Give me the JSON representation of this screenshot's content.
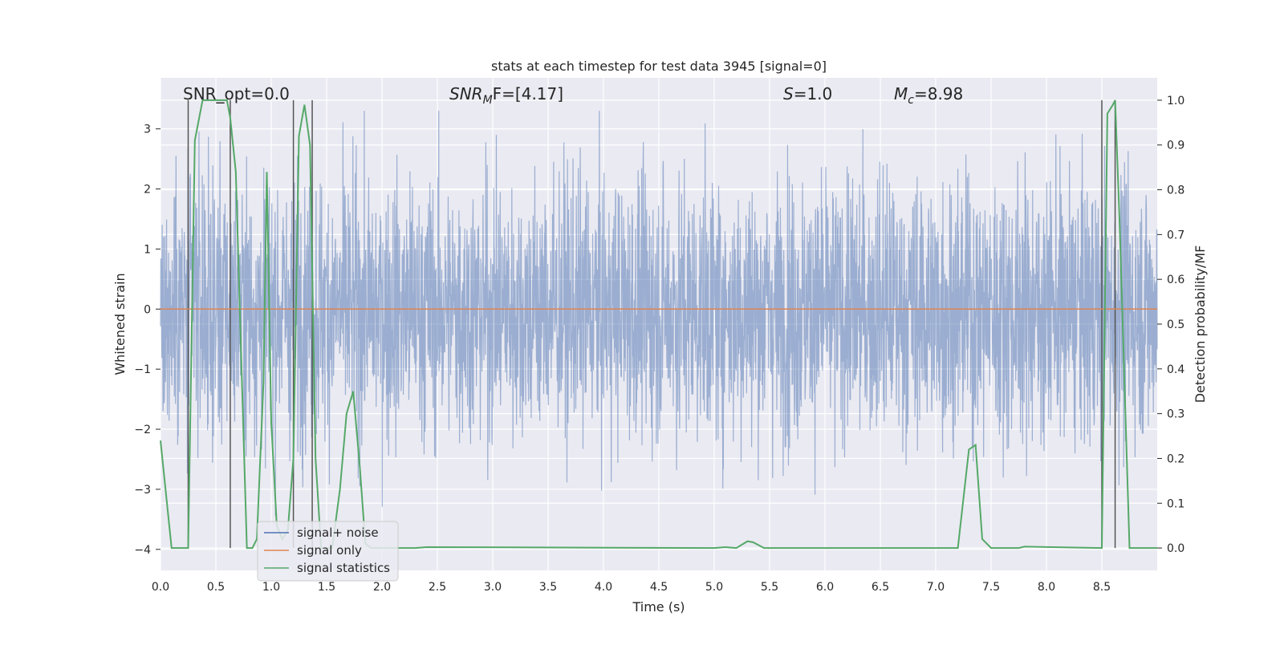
{
  "chart_data": {
    "type": "line",
    "title": "stats at each timestep for test data 3945 [signal=0]",
    "xlabel": "Time (s)",
    "ylabel_left": "Whitened strain",
    "ylabel_right": "Detection probability/MF",
    "xlim": [
      0.0,
      9.0
    ],
    "ylim_left": [
      -4.35,
      3.85
    ],
    "ylim_right": [
      -0.05,
      1.05
    ],
    "xticks": [
      "0.0",
      "0.5",
      "1.0",
      "1.5",
      "2.0",
      "2.5",
      "3.0",
      "3.5",
      "4.0",
      "4.5",
      "5.0",
      "5.5",
      "6.0",
      "6.5",
      "7.0",
      "7.5",
      "8.0",
      "8.5"
    ],
    "yticks_left": [
      "3",
      "2",
      "1",
      "0",
      "−1",
      "−2",
      "−3",
      "−4"
    ],
    "yticks_right": [
      "1.0",
      "0.9",
      "0.8",
      "0.7",
      "0.6",
      "0.5",
      "0.4",
      "0.3",
      "0.2",
      "0.1",
      "0.0"
    ],
    "grid": true,
    "legend_position": "lower-left",
    "annotations": {
      "snr_opt": "SNR_opt=0.0",
      "snr_mf_label": "SNR",
      "snr_mf_sub": "M",
      "snr_mf_value": "F=[4.17]",
      "s_label": "S",
      "s_value": "=1.0",
      "mc_label": "M",
      "mc_sub": "c",
      "mc_value": "=8.98"
    },
    "series": [
      {
        "name": "signal+ noise",
        "color": "#4c72b0",
        "axis": "left",
        "approx_envelope": {
          "upper": 2.4,
          "lower": -2.4,
          "max_peak": 3.3,
          "min_dip": -4.0
        }
      },
      {
        "name": "signal only",
        "color": "#dd8452",
        "axis": "left",
        "constant_value": 0.0
      },
      {
        "name": "signal statistics",
        "color": "#55a868",
        "axis": "right",
        "x": [
          0.0,
          0.1,
          0.25,
          0.31,
          0.38,
          0.45,
          0.52,
          0.6,
          0.63,
          0.68,
          0.72,
          0.78,
          0.83,
          0.87,
          0.93,
          0.96,
          1.0,
          1.05,
          1.1,
          1.15,
          1.2,
          1.25,
          1.3,
          1.35,
          1.4,
          1.45,
          1.5,
          1.55,
          1.62,
          1.68,
          1.74,
          1.8,
          1.85,
          1.9,
          2.0,
          2.3,
          2.4,
          5.0,
          5.1,
          5.2,
          5.3,
          5.35,
          5.45,
          5.5,
          7.2,
          7.3,
          7.36,
          7.42,
          7.5,
          7.75,
          7.8,
          8.5,
          8.55,
          8.6,
          8.62,
          8.66,
          8.75,
          8.8,
          9.0
        ],
        "values": [
          0.24,
          0.0,
          0.0,
          0.91,
          1.0,
          1.0,
          1.0,
          1.0,
          0.96,
          0.84,
          0.5,
          0.0,
          0.0,
          0.02,
          0.37,
          0.84,
          0.28,
          0.05,
          0.02,
          0.04,
          0.2,
          0.92,
          0.99,
          0.9,
          0.2,
          0.0,
          0.0,
          0.0,
          0.13,
          0.3,
          0.35,
          0.18,
          0.01,
          0.0,
          0.0,
          0.0,
          0.002,
          0.0,
          0.002,
          0.0,
          0.015,
          0.013,
          0.0,
          0.0,
          0.0,
          0.22,
          0.23,
          0.02,
          0.0,
          0.0,
          0.003,
          0.0,
          0.97,
          0.99,
          1.0,
          0.73,
          0.0,
          0.0,
          0.0
        ]
      },
      {
        "name": "",
        "color": "#555555",
        "axis": "right",
        "kind": "vertical-markers",
        "x": [
          0.25,
          0.63,
          1.2,
          1.37,
          8.5,
          8.62
        ]
      }
    ]
  }
}
